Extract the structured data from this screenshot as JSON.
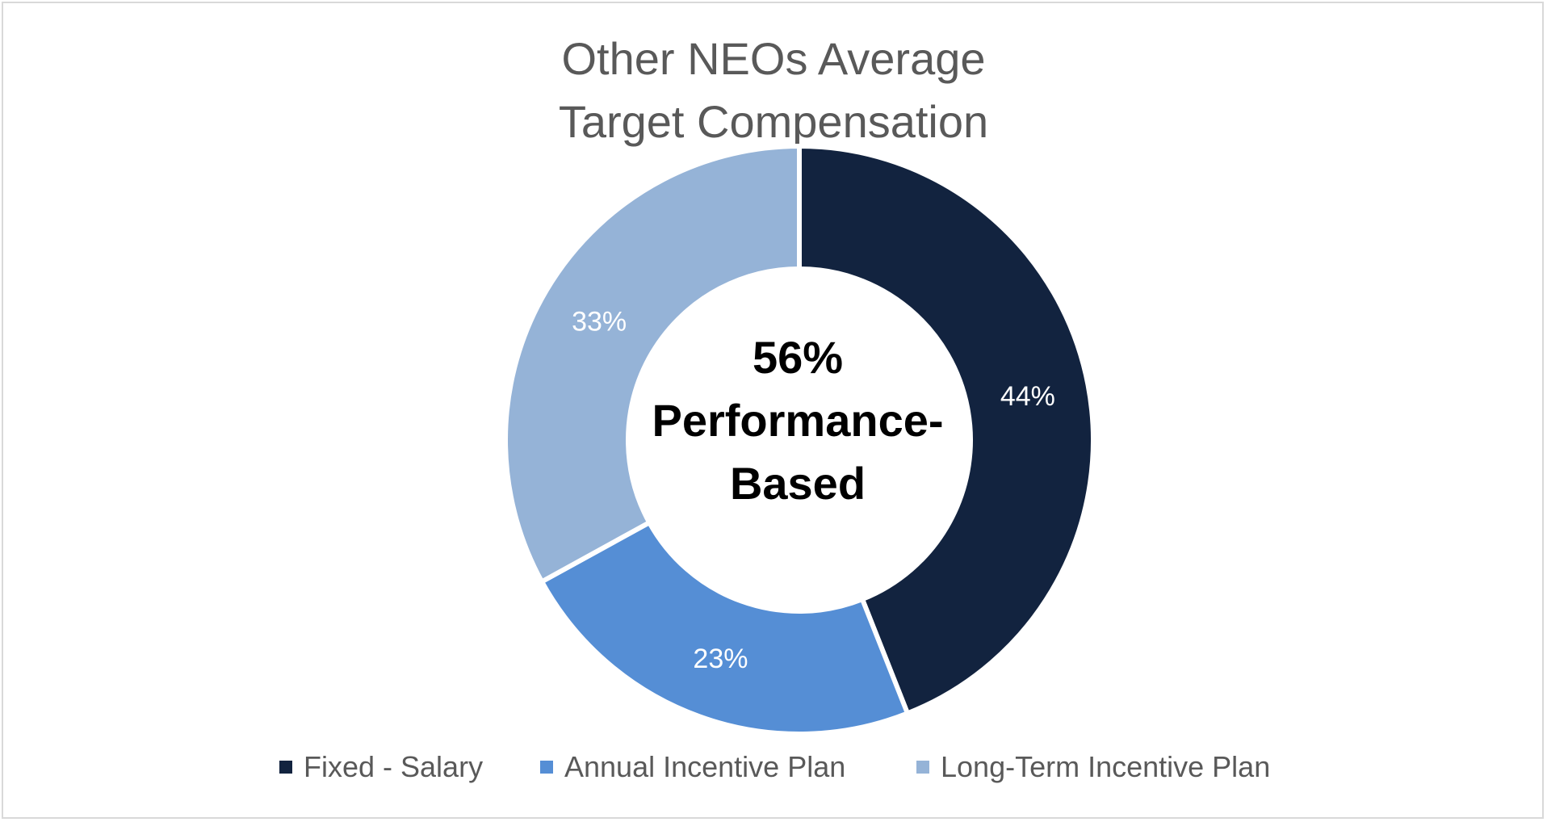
{
  "chart_data": {
    "type": "pie",
    "variant": "donut",
    "title_lines": [
      "Other NEOs Average",
      "Target Compensation"
    ],
    "center_text_lines": [
      "56%",
      "Performance-",
      "Based"
    ],
    "slices": [
      {
        "name": "Fixed - Salary",
        "value": 44,
        "label": "44%",
        "color": "#12233f"
      },
      {
        "name": "Annual Incentive Plan",
        "value": 23,
        "label": "23%",
        "color": "#558ed5"
      },
      {
        "name": "Long-Term Incentive Plan",
        "value": 33,
        "label": "33%",
        "color": "#95b3d7"
      }
    ],
    "legend_position": "bottom",
    "label_color": "#ffffff",
    "title_color": "#595959",
    "border_color": "#d9d9d9"
  }
}
